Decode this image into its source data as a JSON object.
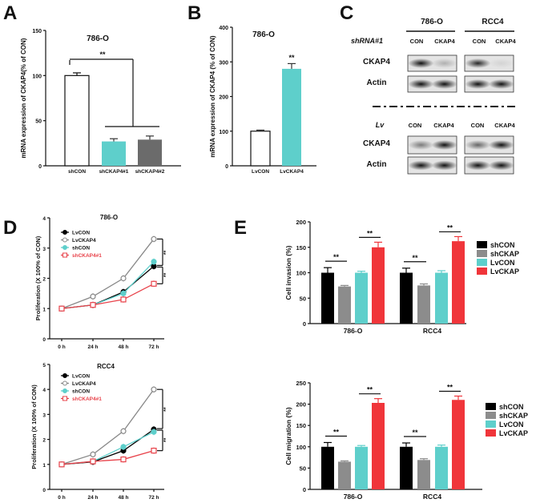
{
  "panels": {
    "A": "A",
    "B": "B",
    "C": "C",
    "D": "D",
    "E": "E"
  },
  "chart_data": [
    {
      "id": "A",
      "type": "bar",
      "title": "786-O",
      "ylabel": "mRNA expression of CKAP4(% of CON)",
      "ylim": [
        0,
        150
      ],
      "yticks": [
        0,
        50,
        100,
        150
      ],
      "categories": [
        "shCON",
        "shCKAP4#1",
        "shCKAP4#2"
      ],
      "values": [
        100,
        27,
        29
      ],
      "errors": [
        3,
        3,
        4
      ],
      "colors": [
        "#ffffff",
        "#5ecfcb",
        "#6b6b6b"
      ],
      "annotations": [
        {
          "text": "**",
          "between": [
            "shCON",
            "shCKAP4#1/shCKAP4#2"
          ]
        }
      ]
    },
    {
      "id": "B",
      "type": "bar",
      "title": "786-O",
      "ylabel": "mRNA expression of CKAP4 (% of CON)",
      "ylim": [
        0,
        400
      ],
      "yticks": [
        0,
        100,
        200,
        300,
        400
      ],
      "categories": [
        "LvCON",
        "LvCKAP4"
      ],
      "values": [
        100,
        280
      ],
      "errors": [
        3,
        15
      ],
      "colors": [
        "#ffffff",
        "#5ecfcb"
      ],
      "annotations": [
        {
          "text": "**",
          "over": "LvCKAP4"
        }
      ]
    },
    {
      "id": "D1",
      "type": "line",
      "title": "786-O",
      "ylabel": "Proliferation (X 100% of CON)",
      "ylim": [
        0,
        4
      ],
      "yticks": [
        0,
        1,
        2,
        3,
        4
      ],
      "categories": [
        "0 h",
        "24 h",
        "48 h",
        "72 h"
      ],
      "series": [
        {
          "name": "LvCON",
          "values": [
            1,
            1.12,
            1.55,
            2.4
          ],
          "color": "#000000",
          "marker": "filled-circle"
        },
        {
          "name": "LvCKAP4",
          "values": [
            1,
            1.4,
            2.0,
            3.3
          ],
          "color": "#888888",
          "marker": "open-circle"
        },
        {
          "name": "shCON",
          "values": [
            1,
            1.12,
            1.5,
            2.55
          ],
          "color": "#5ecfcb",
          "marker": "filled-circle"
        },
        {
          "name": "shCKAP4#1",
          "values": [
            1,
            1.12,
            1.3,
            1.82
          ],
          "color": "#e8424a",
          "marker": "open-square"
        }
      ],
      "legend": "top-left",
      "annotations": [
        "**",
        "**"
      ]
    },
    {
      "id": "D2",
      "type": "line",
      "title": "RCC4",
      "ylabel": "Proliferation (X 100% of CON)",
      "ylim": [
        0,
        5
      ],
      "yticks": [
        0,
        1,
        2,
        3,
        4,
        5
      ],
      "categories": [
        "0 h",
        "24 h",
        "48 h",
        "72 h"
      ],
      "series": [
        {
          "name": "LvCON",
          "values": [
            1,
            1.1,
            1.55,
            2.4
          ],
          "color": "#000000",
          "marker": "filled-circle"
        },
        {
          "name": "LvCKAP4",
          "values": [
            1,
            1.4,
            2.33,
            4.0
          ],
          "color": "#888888",
          "marker": "open-circle"
        },
        {
          "name": "shCON",
          "values": [
            1,
            1.12,
            1.7,
            2.3
          ],
          "color": "#5ecfcb",
          "marker": "filled-circle"
        },
        {
          "name": "shCKAP4#1",
          "values": [
            1,
            1.12,
            1.2,
            1.55
          ],
          "color": "#e8424a",
          "marker": "open-square"
        }
      ],
      "legend": "top-left",
      "annotations": [
        "**",
        "**"
      ]
    },
    {
      "id": "E1",
      "type": "bar",
      "ylabel": "Cell invasion (%)",
      "ylim": [
        0,
        200
      ],
      "yticks": [
        0,
        50,
        100,
        150,
        200
      ],
      "categories": [
        "786-O",
        "RCC4"
      ],
      "series": [
        {
          "name": "shCON",
          "values": [
            100,
            100
          ],
          "errors": [
            10,
            9
          ],
          "color": "#000000"
        },
        {
          "name": "shCKAP",
          "values": [
            73,
            75
          ],
          "errors": [
            2,
            3
          ],
          "color": "#8c8c8c"
        },
        {
          "name": "LvCON",
          "values": [
            100,
            100
          ],
          "errors": [
            3,
            4
          ],
          "color": "#5ecfcb"
        },
        {
          "name": "LvCKAP",
          "values": [
            150,
            162
          ],
          "errors": [
            10,
            9
          ],
          "color": "#f0353a"
        }
      ],
      "legend": "right",
      "annotations": [
        "**",
        "**",
        "**",
        "**"
      ]
    },
    {
      "id": "E2",
      "type": "bar",
      "ylabel": "Cell migration (%)",
      "ylim": [
        0,
        250
      ],
      "yticks": [
        0,
        50,
        100,
        150,
        200,
        250
      ],
      "categories": [
        "786-O",
        "RCC4"
      ],
      "series": [
        {
          "name": "shCON",
          "values": [
            100,
            100
          ],
          "errors": [
            10,
            9
          ],
          "color": "#000000"
        },
        {
          "name": "shCKAP",
          "values": [
            65,
            69
          ],
          "errors": [
            2,
            3
          ],
          "color": "#8c8c8c"
        },
        {
          "name": "LvCON",
          "values": [
            100,
            100
          ],
          "errors": [
            3,
            4
          ],
          "color": "#5ecfcb"
        },
        {
          "name": "LvCKAP",
          "values": [
            203,
            210
          ],
          "errors": [
            10,
            9
          ],
          "color": "#f0353a"
        }
      ],
      "legend": "right",
      "annotations": [
        "**",
        "**",
        "**",
        "**"
      ]
    }
  ],
  "blot": {
    "cell_lines": [
      "786-O",
      "RCC4"
    ],
    "top_condition": "shRNA#1",
    "bottom_condition": "Lv",
    "lanes": [
      "CON",
      "CKAP4",
      "CON",
      "CKAP4"
    ],
    "rows": [
      "CKAP4",
      "Actin"
    ]
  }
}
